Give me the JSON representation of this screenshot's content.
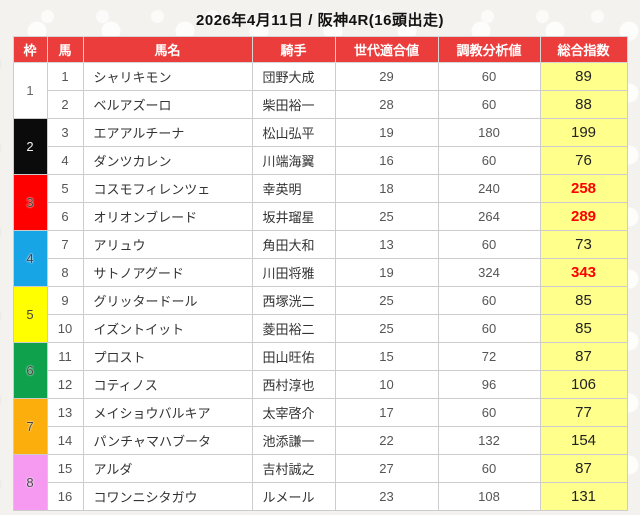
{
  "title": "2026年4月11日 / 阪神4R(16頭出走)",
  "colors": {
    "header_bg": "#ec3d3d",
    "index_bg": "#ffff8b",
    "highlight_text": "#ff0000"
  },
  "table": {
    "headers": {
      "frame": "枠",
      "number": "馬",
      "name": "馬名",
      "jockey": "騎手",
      "generation": "世代適合値",
      "training": "調教分析値",
      "total": "総合指数"
    },
    "frames": [
      {
        "label": "1",
        "bg": "#ffffff",
        "text": "#666666",
        "halo": false
      },
      {
        "label": "2",
        "bg": "#0b0b0b",
        "text": "#f2f2f2",
        "halo": false
      },
      {
        "label": "3",
        "bg": "#ff0000",
        "text": "#444444",
        "halo": true
      },
      {
        "label": "4",
        "bg": "#18a5e6",
        "text": "#444444",
        "halo": true
      },
      {
        "label": "5",
        "bg": "#ffff00",
        "text": "#444444",
        "halo": false
      },
      {
        "label": "6",
        "bg": "#0fa14c",
        "text": "#444444",
        "halo": true
      },
      {
        "label": "7",
        "bg": "#fbae0c",
        "text": "#444444",
        "halo": true
      },
      {
        "label": "8",
        "bg": "#f59af0",
        "text": "#444444",
        "halo": true
      }
    ],
    "rows": [
      {
        "number": "1",
        "name": "シャリキモン",
        "jockey": "団野大成",
        "generation": "29",
        "training": "60",
        "total": "89",
        "highlight": false
      },
      {
        "number": "2",
        "name": "ベルアズーロ",
        "jockey": "柴田裕一",
        "generation": "28",
        "training": "60",
        "total": "88",
        "highlight": false
      },
      {
        "number": "3",
        "name": "エアアルチーナ",
        "jockey": "松山弘平",
        "generation": "19",
        "training": "180",
        "total": "199",
        "highlight": false
      },
      {
        "number": "4",
        "name": "ダンツカレン",
        "jockey": "川端海翼",
        "generation": "16",
        "training": "60",
        "total": "76",
        "highlight": false
      },
      {
        "number": "5",
        "name": "コスモフィレンツェ",
        "jockey": "幸英明",
        "generation": "18",
        "training": "240",
        "total": "258",
        "highlight": true
      },
      {
        "number": "6",
        "name": "オリオンブレード",
        "jockey": "坂井瑠星",
        "generation": "25",
        "training": "264",
        "total": "289",
        "highlight": true
      },
      {
        "number": "7",
        "name": "アリュウ",
        "jockey": "角田大和",
        "generation": "13",
        "training": "60",
        "total": "73",
        "highlight": false
      },
      {
        "number": "8",
        "name": "サトノアグード",
        "jockey": "川田将雅",
        "generation": "19",
        "training": "324",
        "total": "343",
        "highlight": true
      },
      {
        "number": "9",
        "name": "グリッタードール",
        "jockey": "西塚洸二",
        "generation": "25",
        "training": "60",
        "total": "85",
        "highlight": false
      },
      {
        "number": "10",
        "name": "イズントイット",
        "jockey": "菱田裕二",
        "generation": "25",
        "training": "60",
        "total": "85",
        "highlight": false
      },
      {
        "number": "11",
        "name": "プロスト",
        "jockey": "田山旺佑",
        "generation": "15",
        "training": "72",
        "total": "87",
        "highlight": false
      },
      {
        "number": "12",
        "name": "コティノス",
        "jockey": "西村淳也",
        "generation": "10",
        "training": "96",
        "total": "106",
        "highlight": false
      },
      {
        "number": "13",
        "name": "メイショウバルキア",
        "jockey": "太宰啓介",
        "generation": "17",
        "training": "60",
        "total": "77",
        "highlight": false
      },
      {
        "number": "14",
        "name": "パンチャマハブータ",
        "jockey": "池添謙一",
        "generation": "22",
        "training": "132",
        "total": "154",
        "highlight": false
      },
      {
        "number": "15",
        "name": "アルダ",
        "jockey": "吉村誠之",
        "generation": "27",
        "training": "60",
        "total": "87",
        "highlight": false
      },
      {
        "number": "16",
        "name": "コワンニシタガウ",
        "jockey": "ルメール",
        "generation": "23",
        "training": "108",
        "total": "131",
        "highlight": false
      }
    ]
  }
}
